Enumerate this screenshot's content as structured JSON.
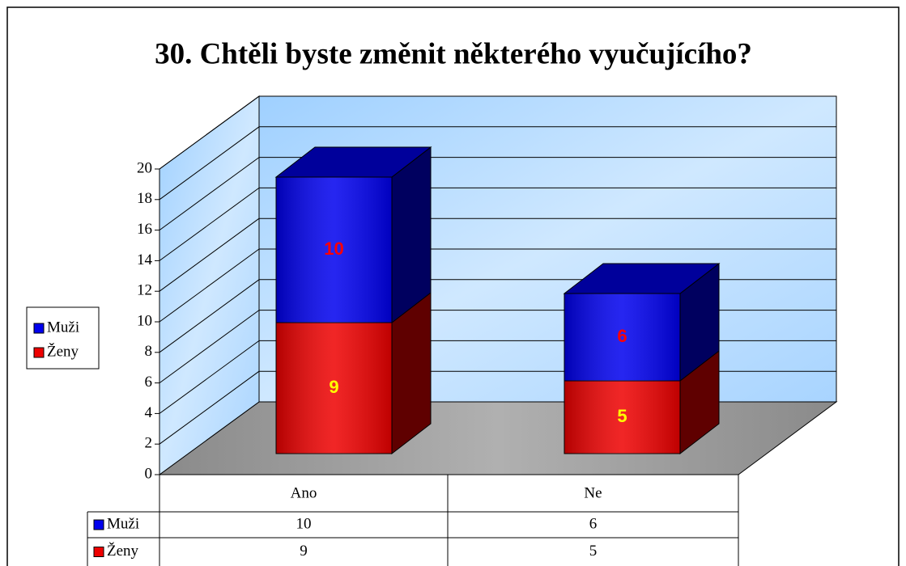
{
  "chart_data": {
    "type": "bar3d_stacked",
    "title": "30. Chtěli byste změnit některého vyučujícího?",
    "categories": [
      "Ano",
      "Ne"
    ],
    "series": [
      {
        "name": "Ženy",
        "color": "#ee0000",
        "label_color": "#ffff00",
        "values": [
          9,
          5
        ]
      },
      {
        "name": "Muži",
        "color": "#0000ee",
        "label_color": "#ff0000",
        "values": [
          10,
          6
        ]
      }
    ],
    "ylim": [
      0,
      20
    ],
    "yticks": [
      0,
      2,
      4,
      6,
      8,
      10,
      12,
      14,
      16,
      18,
      20
    ],
    "grid": true,
    "legend": "left",
    "data_table": true
  }
}
